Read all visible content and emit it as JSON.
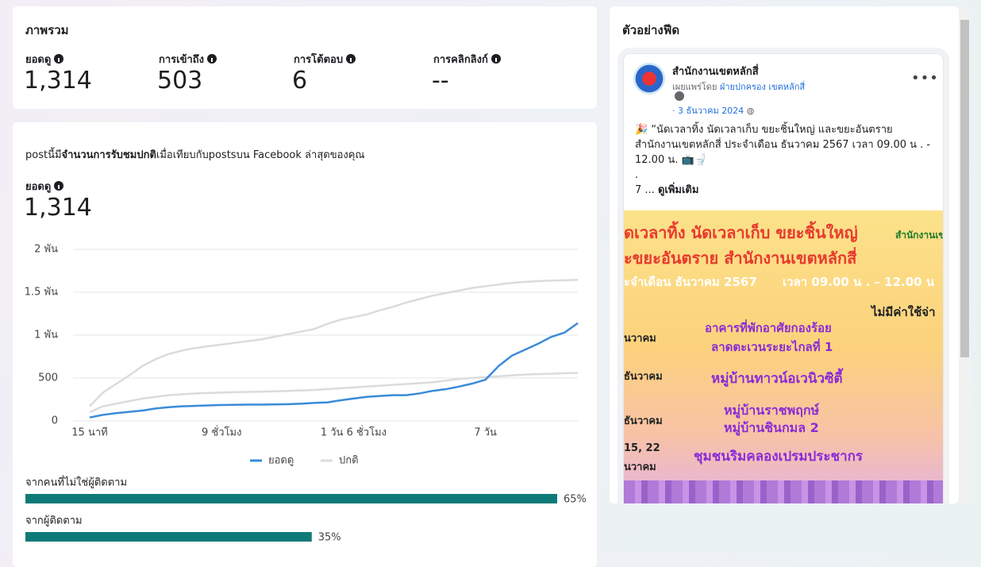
{
  "overview": {
    "title": "ภาพรวม",
    "metrics": [
      {
        "label": "ยอดดู",
        "value": "1,314"
      },
      {
        "label": "การเข้าถึง",
        "value": "503"
      },
      {
        "label": "การโต้ตอบ",
        "value": "6"
      },
      {
        "label": "การคลิกลิงก์",
        "value": "--"
      }
    ]
  },
  "comparison": {
    "text_before": "postนี้มี",
    "text_bold": "จำนวนการรับชมปกติ",
    "text_after": "เมื่อเทียบกับpostsบน Facebook ล่าสุดของคุณ",
    "metric_label": "ยอดดู",
    "metric_value": "1,314"
  },
  "chart_data": [
    {
      "type": "line",
      "categories": [
        "15 นาที",
        null,
        null,
        null,
        null,
        null,
        null,
        null,
        null,
        null,
        "9 ชั่วโมง",
        null,
        null,
        null,
        null,
        null,
        null,
        null,
        null,
        null,
        "1 วัน 6 ชั่วโมง",
        null,
        null,
        null,
        null,
        null,
        null,
        null,
        null,
        null,
        "7 วัน",
        null,
        null,
        null,
        null,
        null,
        null,
        null
      ],
      "series": [
        {
          "name": "ยอดดู",
          "color": "#3a8bd8",
          "values": [
            40,
            70,
            90,
            105,
            120,
            145,
            160,
            170,
            175,
            180,
            185,
            188,
            190,
            190,
            192,
            195,
            200,
            210,
            215,
            240,
            260,
            280,
            290,
            300,
            300,
            320,
            350,
            370,
            400,
            435,
            480,
            640,
            760,
            830,
            900,
            980,
            1030,
            1140
          ]
        },
        {
          "name": "ปกติ",
          "color": "#dadbde",
          "low": [
            100,
            170,
            200,
            230,
            260,
            280,
            300,
            310,
            320,
            325,
            330,
            335,
            338,
            340,
            345,
            350,
            355,
            360,
            370,
            380,
            390,
            400,
            410,
            420,
            430,
            440,
            450,
            470,
            490,
            500,
            510,
            520,
            530,
            540,
            545,
            550,
            555,
            560
          ],
          "high": [
            170,
            330,
            430,
            530,
            640,
            720,
            780,
            820,
            850,
            870,
            890,
            910,
            930,
            950,
            980,
            1010,
            1040,
            1070,
            1130,
            1180,
            1210,
            1240,
            1290,
            1330,
            1380,
            1420,
            1460,
            1490,
            1520,
            1550,
            1570,
            1590,
            1610,
            1620,
            1630,
            1635,
            1640,
            1645
          ]
        }
      ],
      "ylim": [
        0,
        2000
      ],
      "yticks": [
        0,
        500,
        {
          "value": 1000,
          "label": "1 พัน"
        },
        {
          "value": 1500,
          "label": "1.5 พัน"
        },
        {
          "value": 2000,
          "label": "2 พัน"
        }
      ],
      "grid": true,
      "legend": "bottom"
    },
    {
      "type": "bar",
      "categories": [
        "จากคนที่ไม่ใช่ผู้ติดตาม",
        "จากผู้ติดตาม"
      ],
      "values": [
        65,
        35
      ],
      "value_labels": [
        "65%",
        "35%"
      ],
      "color": "#0e7a78"
    }
  ],
  "feed": {
    "title": "ตัวอย่างฟีด",
    "page_name": "สำนักงานเขตหลักสี่",
    "published_by": "เผยแพร่โดย",
    "publisher": "ฝ่ายปกครอง เขตหลักสี่",
    "date": "3 ธันวาคม 2024",
    "text_lines": [
      "🎉 “นัดเวลาทิ้ง นัดเวลาเก็บ ขยะชิ้นใหญ่ และขยะอันตราย",
      "สำนักงานเขตหลักสี่ ประจำเดือน ธันวาคม  2567 เวลา 09.00 น . -",
      "12.00 น. 📺🚽",
      "."
    ],
    "more_prefix": "7 ...",
    "see_more": "ดูเพิ่มเติม",
    "poster": [
      "ัดเวลาทิ้ง นัดเวลาเก็บ ขยะชิ้นใหญ่",
      "ะขยะอันตราย สำนักงานเขตหลักสี่",
      "ะจำเดือน ธันวาคม 2567",
      "เวลา 09.00 น . – 12.00 น",
      "สำนักงานเข",
      "ไม่มีค่าใช้จ่า",
      "อาคารที่พักอาศัยกองร้อย",
      "ลาดตะเวนระยะไกลที่ 1",
      "หมู่บ้านทาวน์อเวนิวซิตี้",
      "หมู่บ้านราชพฤกษ์",
      "หมู่บ้านชินกมล 2",
      "ชุมชนริมคลองเปรมประชากร",
      "ันวาคม",
      "ธันวาคม",
      "ธันวาคม",
      "15, 22",
      "นวาคม"
    ]
  }
}
